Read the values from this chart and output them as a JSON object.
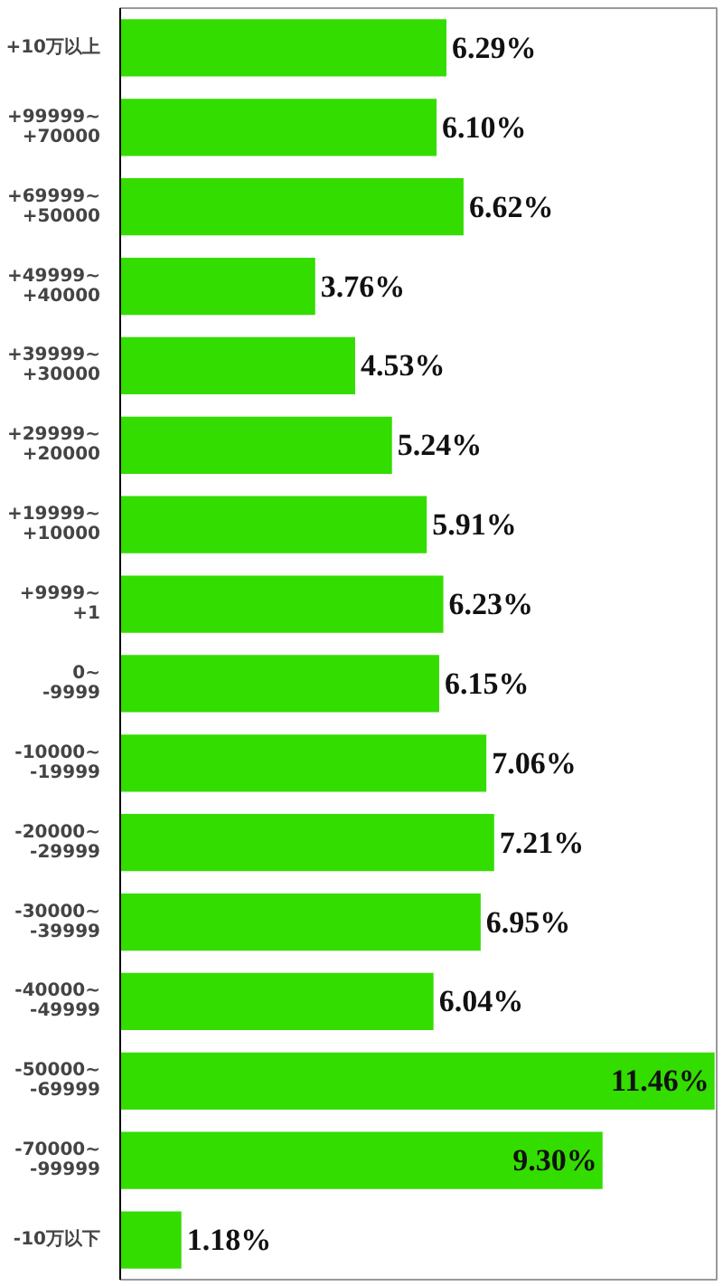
{
  "chart_data": {
    "type": "bar",
    "orientation": "horizontal",
    "categories": [
      "+10万以上",
      "+99999~\n+70000",
      "+69999~\n+50000",
      "+49999~\n+40000",
      "+39999~\n+30000",
      "+29999~\n+20000",
      "+19999~\n+10000",
      "+9999~\n+1",
      "0~\n-9999",
      "-10000~\n-19999",
      "-20000~\n-29999",
      "-30000~\n-39999",
      "-40000~\n-49999",
      "-50000~\n-69999",
      "-70000~\n-99999",
      "-10万以下"
    ],
    "values": [
      6.29,
      6.1,
      6.62,
      3.76,
      4.53,
      5.24,
      5.91,
      6.23,
      6.15,
      7.06,
      7.21,
      6.95,
      6.04,
      11.46,
      9.3,
      1.18
    ],
    "value_labels": [
      "6.29%",
      "6.10%",
      "6.62%",
      "3.76%",
      "4.53%",
      "5.24%",
      "5.91%",
      "6.23%",
      "6.15%",
      "7.06%",
      "7.21%",
      "6.95%",
      "6.04%",
      "11.46%",
      "9.30%",
      "1.18%"
    ],
    "color": "#33dd00",
    "xlim": [
      0,
      11.5
    ],
    "tick_labels": "y",
    "grid": false
  }
}
